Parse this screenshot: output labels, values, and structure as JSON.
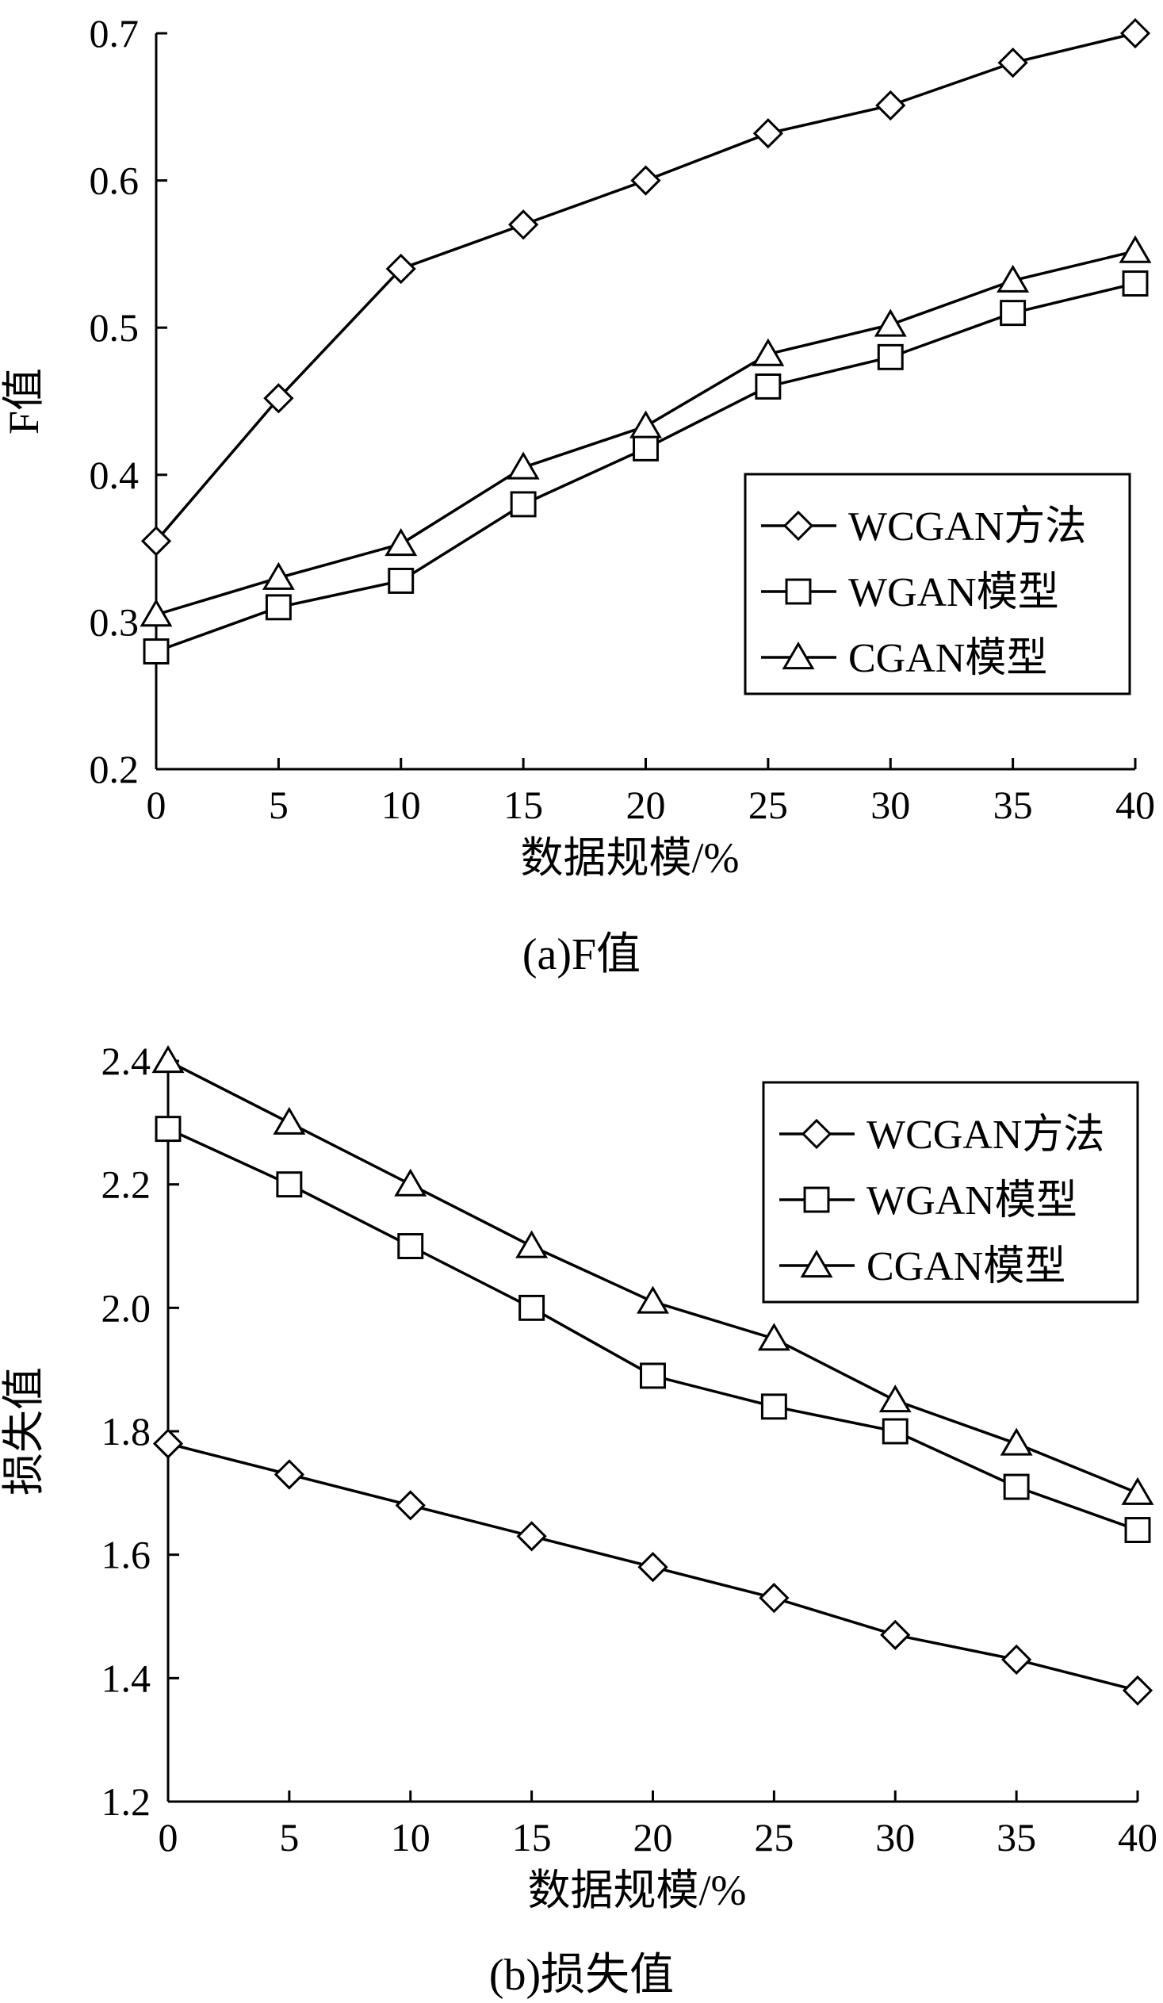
{
  "chart_data": [
    {
      "type": "line",
      "caption": "(a)F值",
      "xlabel": "数据规模/%",
      "ylabel": "F值",
      "x": [
        0,
        5,
        10,
        15,
        20,
        25,
        30,
        35,
        40
      ],
      "xlim": [
        0,
        40
      ],
      "ylim": [
        0.2,
        0.7
      ],
      "xticks": [
        "0",
        "5",
        "10",
        "15",
        "20",
        "25",
        "30",
        "35",
        "40"
      ],
      "yticks": [
        "0.2",
        "0.3",
        "0.4",
        "0.5",
        "0.6",
        "0.7"
      ],
      "grid": false,
      "legend": "right",
      "series": [
        {
          "name": "WCGAN方法",
          "marker": "diamond",
          "values": [
            0.355,
            0.452,
            0.54,
            0.57,
            0.6,
            0.632,
            0.651,
            0.68,
            0.7
          ]
        },
        {
          "name": "WGAN模型",
          "marker": "square",
          "values": [
            0.28,
            0.31,
            0.328,
            0.38,
            0.418,
            0.46,
            0.48,
            0.51,
            0.53
          ]
        },
        {
          "name": "CGAN模型",
          "marker": "triangle",
          "values": [
            0.305,
            0.33,
            0.353,
            0.405,
            0.433,
            0.482,
            0.502,
            0.532,
            0.552
          ]
        }
      ]
    },
    {
      "type": "line",
      "caption": "(b)损失值",
      "xlabel": "数据规模/%",
      "ylabel": "损失值",
      "x": [
        0,
        5,
        10,
        15,
        20,
        25,
        30,
        35,
        40
      ],
      "xlim": [
        0,
        40
      ],
      "ylim": [
        1.2,
        2.4
      ],
      "xticks": [
        "0",
        "5",
        "10",
        "15",
        "20",
        "25",
        "30",
        "35",
        "40"
      ],
      "yticks": [
        "1.2",
        "1.4",
        "1.6",
        "1.8",
        "2.0",
        "2.2",
        "2.4"
      ],
      "grid": false,
      "legend": "top-right",
      "series": [
        {
          "name": "WCGAN方法",
          "marker": "diamond",
          "values": [
            1.78,
            1.73,
            1.68,
            1.63,
            1.58,
            1.53,
            1.47,
            1.43,
            1.38
          ]
        },
        {
          "name": "WGAN模型",
          "marker": "square",
          "values": [
            2.29,
            2.2,
            2.1,
            2.0,
            1.89,
            1.84,
            1.8,
            1.71,
            1.64
          ]
        },
        {
          "name": "CGAN模型",
          "marker": "triangle",
          "values": [
            2.4,
            2.3,
            2.2,
            2.1,
            2.01,
            1.95,
            1.85,
            1.78,
            1.7
          ]
        }
      ]
    }
  ],
  "style": {
    "line_color": "#000000",
    "marker_fill": "#ffffff",
    "background": "#ffffff"
  }
}
